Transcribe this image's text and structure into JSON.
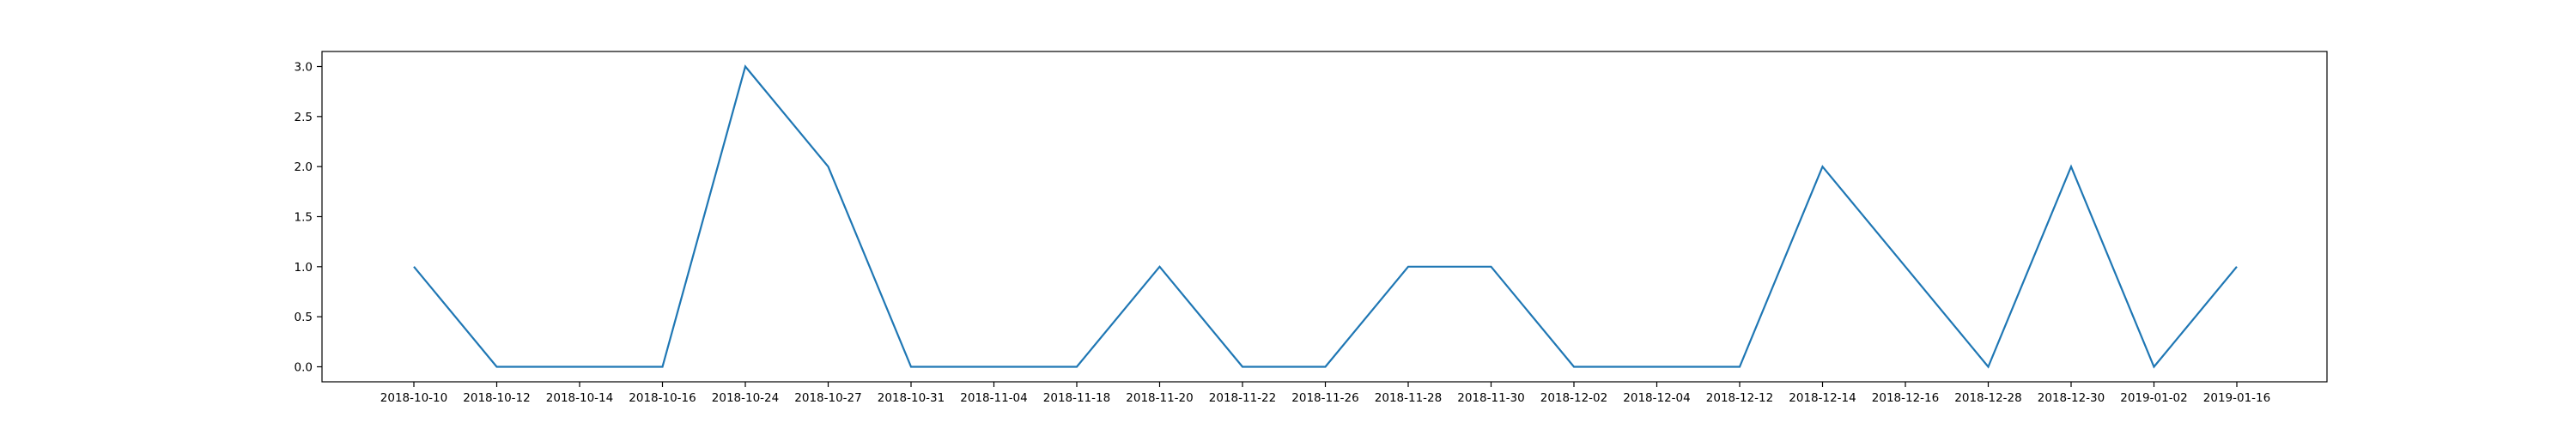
{
  "chart_data": {
    "type": "line",
    "title": "",
    "xlabel": "",
    "ylabel": "",
    "categories": [
      "2018-10-10",
      "2018-10-12",
      "2018-10-14",
      "2018-10-16",
      "2018-10-24",
      "2018-10-27",
      "2018-10-31",
      "2018-11-04",
      "2018-11-18",
      "2018-11-20",
      "2018-11-22",
      "2018-11-26",
      "2018-11-28",
      "2018-11-30",
      "2018-12-02",
      "2018-12-04",
      "2018-12-12",
      "2018-12-14",
      "2018-12-16",
      "2018-12-28",
      "2018-12-30",
      "2019-01-02",
      "2019-01-16"
    ],
    "series": [
      {
        "values": [
          1,
          0,
          0,
          0,
          3,
          2,
          0,
          0,
          0,
          1,
          0,
          0,
          1,
          1,
          0,
          0,
          0,
          2,
          1,
          0,
          2,
          0,
          1
        ],
        "color": "#1f77b4"
      }
    ],
    "ylim": [
      -0.15,
      3.15
    ],
    "yticks": [
      "0.0",
      "0.5",
      "1.0",
      "1.5",
      "2.0",
      "2.5",
      "3.0"
    ],
    "ytick_values": [
      0,
      0.5,
      1.0,
      1.5,
      2.0,
      2.5,
      3.0
    ],
    "grid": false,
    "legend": "none"
  }
}
